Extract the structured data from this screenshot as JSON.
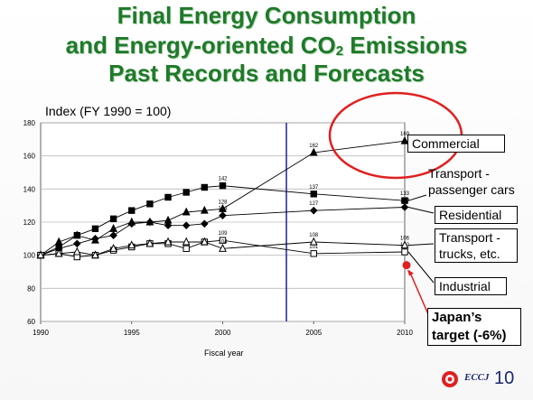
{
  "title": {
    "line1": "Final Energy Consumption",
    "line2_pre": "and Energy-oriented CO",
    "line2_sub": "2",
    "line2_post": " Emissions",
    "line3": "Past Records and Forecasts"
  },
  "index_label": "Index (FY 1990 = 100)",
  "xlabel": "Fiscal year",
  "callouts": {
    "commercial": "Commercial",
    "transport_passenger_1": "Transport -",
    "transport_passenger_2": "passenger cars",
    "residential": "Residential",
    "transport_trucks_1": "Transport -",
    "transport_trucks_2": "trucks, etc.",
    "industrial": "Industrial"
  },
  "target": {
    "line1": "Japan’s",
    "line2": "target (-6%)"
  },
  "footer": {
    "logo_text": "ECCJ",
    "page_number": "10"
  },
  "colors": {
    "title": "#1f7a2a",
    "highlight_circle": "#e02020",
    "vertical_line": "#2020a0",
    "target_marker": "#e02020",
    "logo": "#1a2a70"
  },
  "chart_data": {
    "type": "line",
    "xlim": [
      1990,
      2010
    ],
    "ylim": [
      60,
      180
    ],
    "x_ticks": [
      1990,
      1995,
      2000,
      2005,
      2010
    ],
    "y_ticks": [
      60,
      80,
      100,
      120,
      140,
      160,
      180
    ],
    "grid": "horizontal",
    "series": [
      {
        "name": "Commercial",
        "marker": "triangle-filled",
        "points": [
          [
            1990,
            100
          ],
          [
            1991,
            108
          ],
          [
            1992,
            112
          ],
          [
            1993,
            109
          ],
          [
            1994,
            116
          ],
          [
            1995,
            120
          ],
          [
            1996,
            120
          ],
          [
            1997,
            121
          ],
          [
            1998,
            126
          ],
          [
            1999,
            127
          ],
          [
            2000,
            128
          ],
          [
            2005,
            162
          ],
          [
            2010,
            169
          ]
        ],
        "labels": [
          {
            "x": 2000,
            "y": 128,
            "text": "128"
          },
          {
            "x": 2005,
            "y": 162,
            "text": "162"
          },
          {
            "x": 2010,
            "y": 169,
            "text": "169"
          }
        ]
      },
      {
        "name": "Transport - passenger cars",
        "marker": "square-filled",
        "points": [
          [
            1990,
            100
          ],
          [
            1991,
            105
          ],
          [
            1992,
            112
          ],
          [
            1993,
            116
          ],
          [
            1994,
            122
          ],
          [
            1995,
            127
          ],
          [
            1996,
            131
          ],
          [
            1997,
            135
          ],
          [
            1998,
            138
          ],
          [
            1999,
            141
          ],
          [
            2000,
            142
          ],
          [
            2005,
            137
          ],
          [
            2010,
            133
          ]
        ],
        "labels": [
          {
            "x": 2000,
            "y": 142,
            "text": "142"
          },
          {
            "x": 2005,
            "y": 137,
            "text": "137"
          },
          {
            "x": 2010,
            "y": 133,
            "text": "133"
          }
        ]
      },
      {
        "name": "Residential",
        "marker": "diamond-filled",
        "points": [
          [
            1990,
            100
          ],
          [
            1991,
            104
          ],
          [
            1992,
            107
          ],
          [
            1993,
            110
          ],
          [
            1994,
            112
          ],
          [
            1995,
            119
          ],
          [
            1996,
            120
          ],
          [
            1997,
            118
          ],
          [
            1998,
            118
          ],
          [
            1999,
            119
          ],
          [
            2000,
            124
          ],
          [
            2005,
            127
          ],
          [
            2010,
            129
          ]
        ],
        "labels": [
          {
            "x": 2000,
            "y": 124,
            "text": "124"
          },
          {
            "x": 2005,
            "y": 127,
            "text": "127"
          },
          {
            "x": 2010,
            "y": 129,
            "text": "129"
          }
        ]
      },
      {
        "name": "Transport - trucks, etc.",
        "marker": "square-open",
        "points": [
          [
            1990,
            100
          ],
          [
            1991,
            101
          ],
          [
            1992,
            99
          ],
          [
            1993,
            100
          ],
          [
            1994,
            103
          ],
          [
            1995,
            105
          ],
          [
            1996,
            107
          ],
          [
            1997,
            107
          ],
          [
            1998,
            104
          ],
          [
            1999,
            108
          ],
          [
            2000,
            109
          ],
          [
            2005,
            101
          ],
          [
            2010,
            102
          ]
        ],
        "labels": [
          {
            "x": 2000,
            "y": 109,
            "text": "109"
          },
          {
            "x": 2005,
            "y": 101,
            "text": "101"
          },
          {
            "x": 2010,
            "y": 102,
            "text": "102"
          }
        ]
      },
      {
        "name": "Industrial",
        "marker": "triangle-open",
        "points": [
          [
            1990,
            100
          ],
          [
            1991,
            101
          ],
          [
            1992,
            102
          ],
          [
            1993,
            100
          ],
          [
            1994,
            104
          ],
          [
            1995,
            106
          ],
          [
            1996,
            107
          ],
          [
            1997,
            108
          ],
          [
            1998,
            108
          ],
          [
            1999,
            108
          ],
          [
            2000,
            104
          ],
          [
            2005,
            108
          ],
          [
            2010,
            106
          ]
        ],
        "labels": [
          {
            "x": 2000,
            "y": 104,
            "text": "104"
          },
          {
            "x": 2005,
            "y": 108,
            "text": "108"
          },
          {
            "x": 2010,
            "y": 106,
            "text": "106"
          }
        ]
      }
    ],
    "vertical_line_x": 2003.5,
    "target_point": {
      "x": 2010,
      "y": 94
    }
  }
}
